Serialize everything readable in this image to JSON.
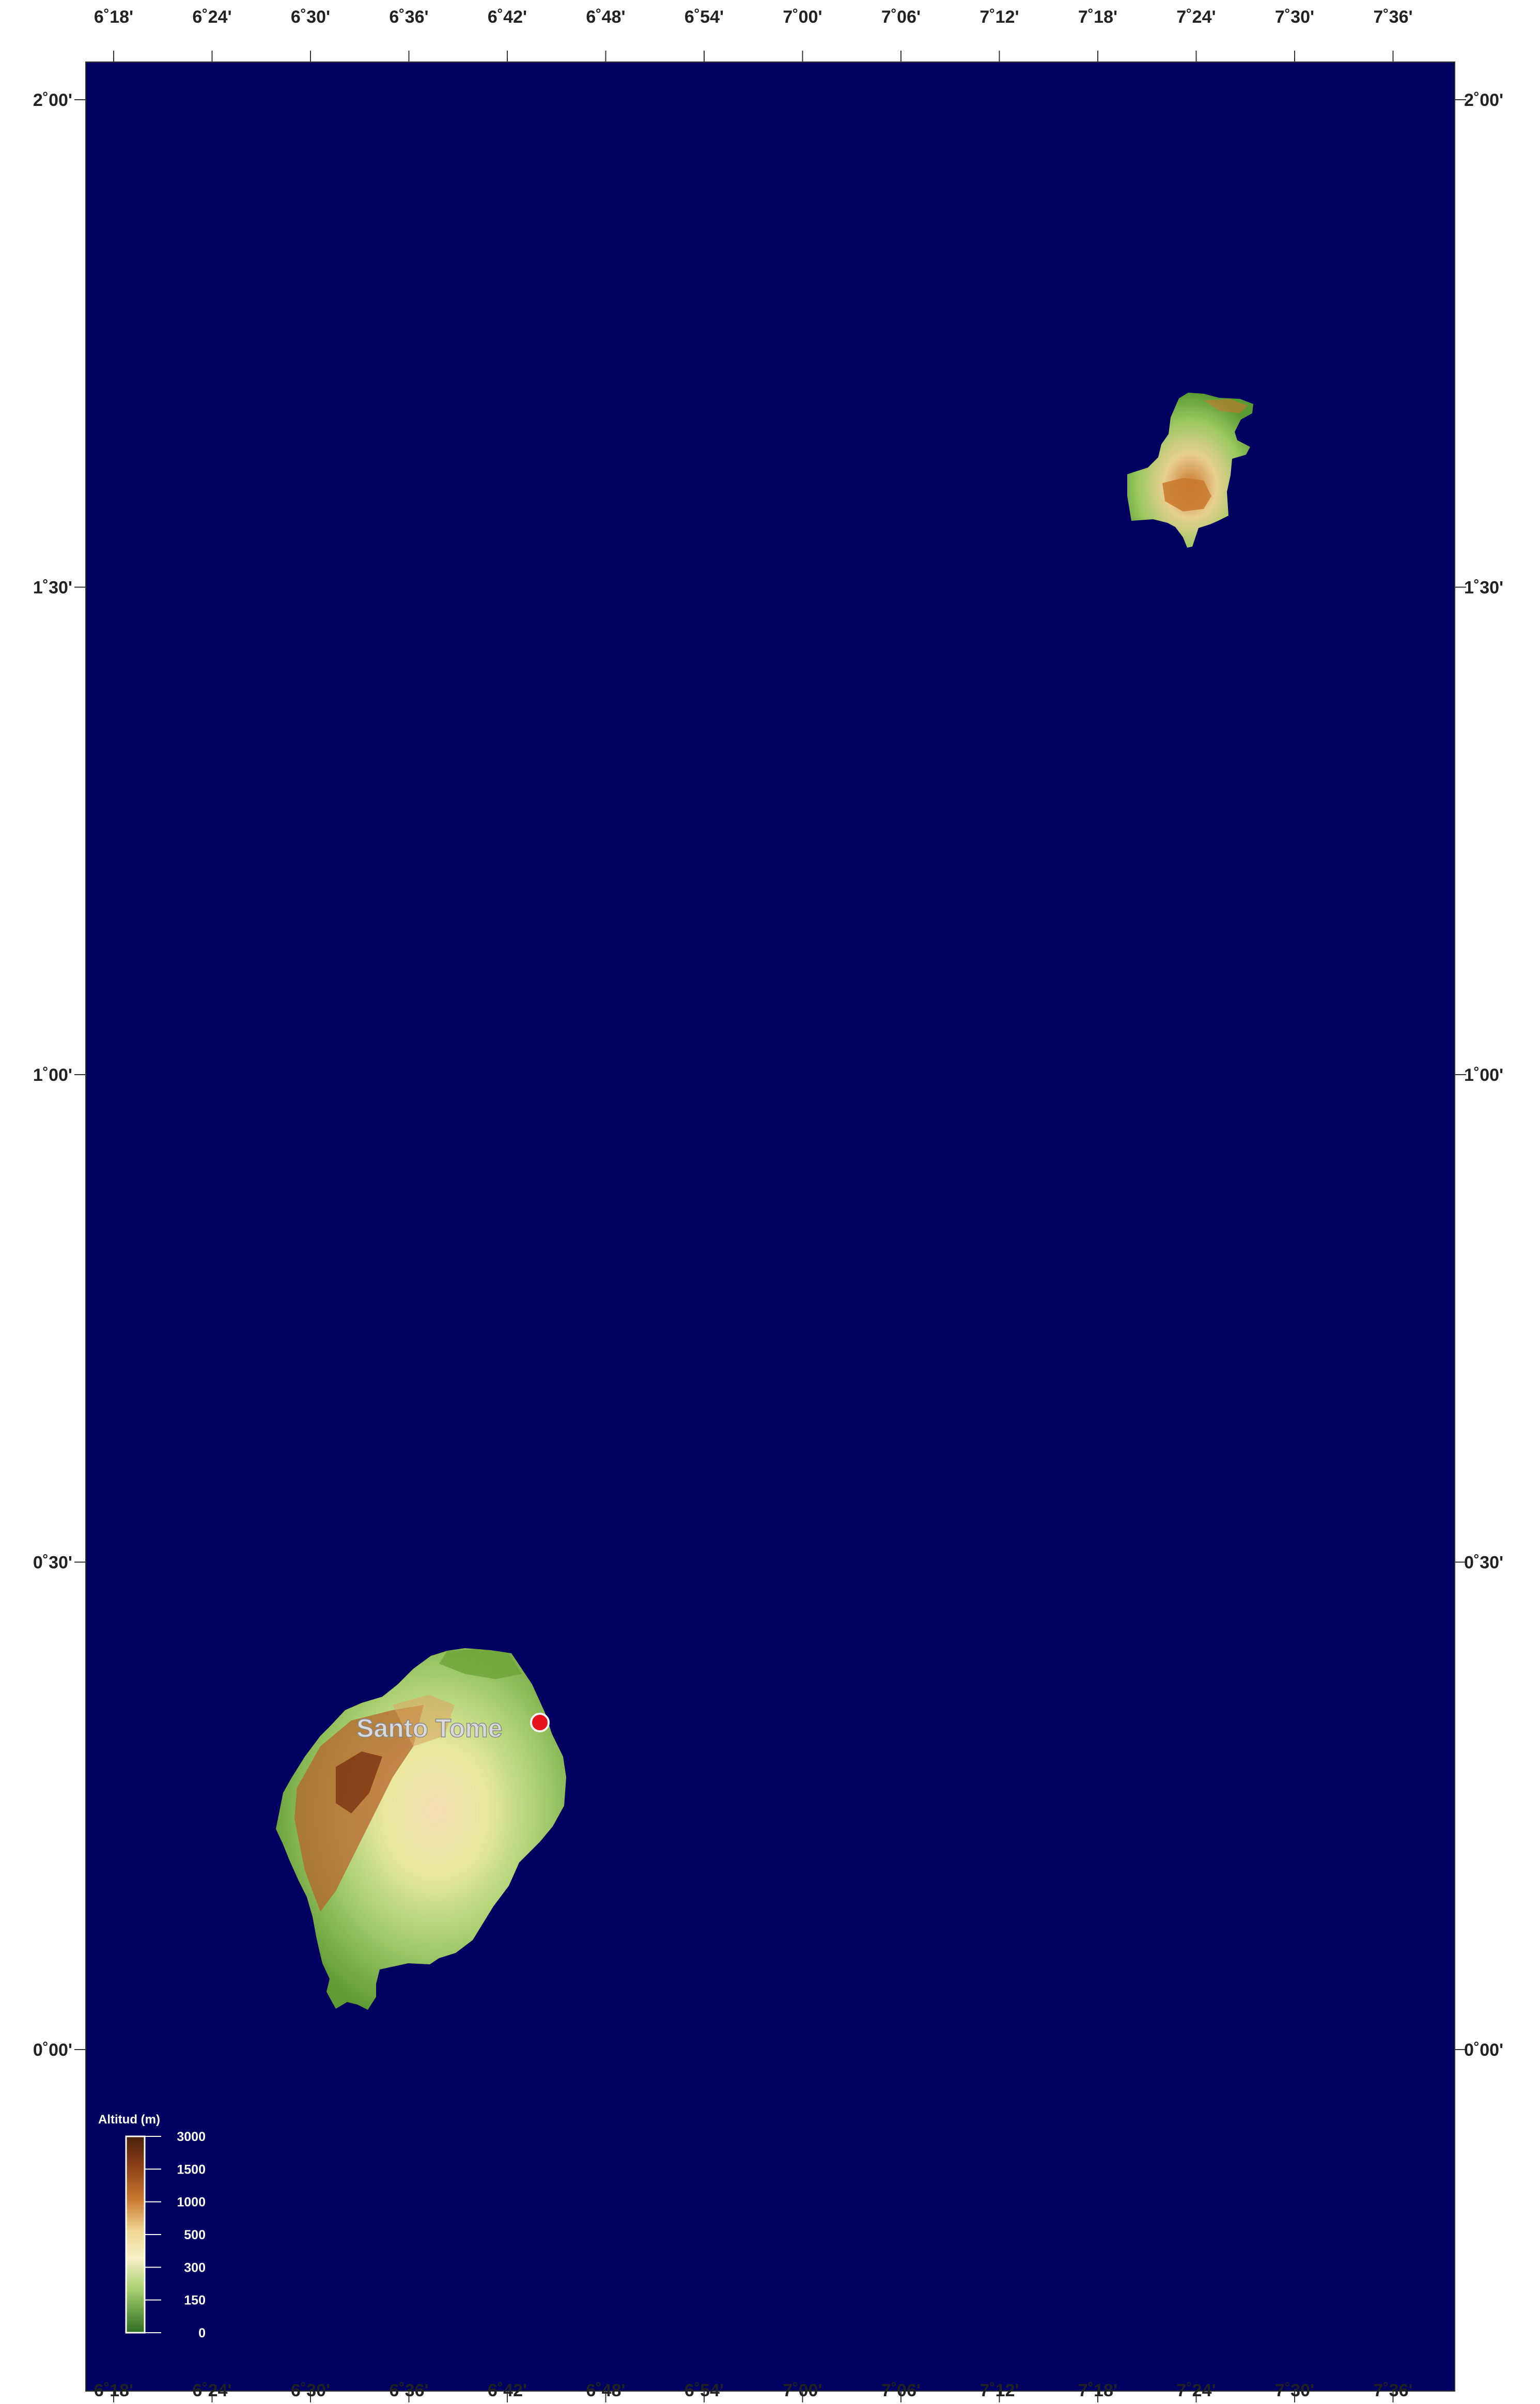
{
  "map": {
    "ocean_color": "#000060",
    "longitude_labels": [
      "6˚18'",
      "6˚24'",
      "6˚30'",
      "6˚36'",
      "6˚42'",
      "6˚48'",
      "6˚54'",
      "7˚00'",
      "7˚06'",
      "7˚12'",
      "7˚18'",
      "7˚24'",
      "7˚30'",
      "7˚36'"
    ],
    "latitude_labels": [
      "2˚00'",
      "1˚30'",
      "1˚00'",
      "0˚30'",
      "0˚00'"
    ],
    "city": {
      "name": "Santo Tome",
      "marker_color": "#e8141b"
    },
    "legend": {
      "title": "Altitud  (m)",
      "ticks": [
        "3000",
        "1500",
        "1000",
        "500",
        "300",
        "150",
        "0"
      ],
      "colors": [
        "#5a2a12",
        "#9c4f22",
        "#d08a3a",
        "#f2e2a8",
        "#c2e08a",
        "#6ea43a",
        "#3a7a2a"
      ]
    }
  }
}
